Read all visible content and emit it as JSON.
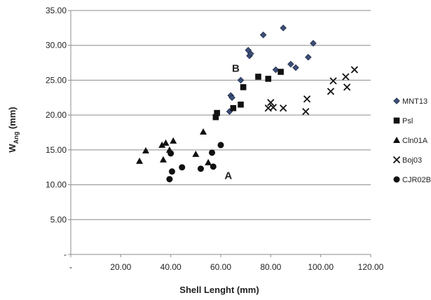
{
  "chart_data": {
    "type": "scatter",
    "title": "",
    "xlabel": "Shell Lenght (mm)",
    "ylabel_main": "W",
    "ylabel_sub": "Ang",
    "ylabel_unit": " (mm)",
    "xlim": [
      0,
      120
    ],
    "ylim": [
      0,
      35
    ],
    "x_ticks": [
      {
        "value": 0,
        "label": "-"
      },
      {
        "value": 20,
        "label": "20.00"
      },
      {
        "value": 40,
        "label": "40.00"
      },
      {
        "value": 60,
        "label": "60.00"
      },
      {
        "value": 80,
        "label": "80.00"
      },
      {
        "value": 100,
        "label": "100.00"
      },
      {
        "value": 120,
        "label": "120.00"
      }
    ],
    "y_ticks": [
      {
        "value": 0,
        "label": "-"
      },
      {
        "value": 5,
        "label": "5.00"
      },
      {
        "value": 10,
        "label": "10.00"
      },
      {
        "value": 15,
        "label": "15.00"
      },
      {
        "value": 20,
        "label": "20.00"
      },
      {
        "value": 25,
        "label": "25.00"
      },
      {
        "value": 30,
        "label": "30.00"
      },
      {
        "value": 35,
        "label": "35.00"
      }
    ],
    "grid": "horizontal",
    "legend_position": "right",
    "annotations": [
      {
        "text": "B",
        "x": 64.5,
        "y": 26.2
      },
      {
        "text": "A",
        "x": 61.5,
        "y": 10.8
      }
    ],
    "series": [
      {
        "name": "MNT13",
        "marker": "diamond",
        "color": "#2f3e5f",
        "points": [
          [
            63.5,
            20.5
          ],
          [
            64,
            22.8
          ],
          [
            64.5,
            22.5
          ],
          [
            68,
            25
          ],
          [
            71,
            29.3
          ],
          [
            71.5,
            28.5
          ],
          [
            72,
            28.8
          ],
          [
            77,
            31.5
          ],
          [
            82,
            26.5
          ],
          [
            85,
            32.5
          ],
          [
            88,
            27.3
          ],
          [
            90,
            26.8
          ],
          [
            95,
            28.3
          ],
          [
            97,
            30.3
          ]
        ]
      },
      {
        "name": "Psl",
        "marker": "square",
        "color": "#111111",
        "points": [
          [
            58,
            19.7
          ],
          [
            58.5,
            20.3
          ],
          [
            65,
            21
          ],
          [
            68,
            21.5
          ],
          [
            69,
            24
          ],
          [
            75,
            25.5
          ],
          [
            79,
            25.2
          ],
          [
            84,
            26.2
          ]
        ]
      },
      {
        "name": "Cln01A",
        "marker": "triangle",
        "color": "#111111",
        "points": [
          [
            27.5,
            13.4
          ],
          [
            30,
            14.9
          ],
          [
            36.5,
            15.7
          ],
          [
            37,
            13.6
          ],
          [
            38,
            16
          ],
          [
            39.5,
            15
          ],
          [
            41,
            16.3
          ],
          [
            50,
            14.4
          ],
          [
            53,
            17.6
          ],
          [
            55,
            13.2
          ]
        ]
      },
      {
        "name": "Boj03",
        "marker": "x",
        "color": "#111111",
        "points": [
          [
            79,
            21
          ],
          [
            80,
            21.8
          ],
          [
            81,
            21.1
          ],
          [
            85,
            21
          ],
          [
            94,
            20.5
          ],
          [
            94.5,
            22.3
          ],
          [
            104,
            23.4
          ],
          [
            105,
            24.9
          ],
          [
            110,
            25.5
          ],
          [
            110.5,
            24
          ],
          [
            113.5,
            26.5
          ]
        ]
      },
      {
        "name": "CJR02B",
        "marker": "circle",
        "color": "#111111",
        "points": [
          [
            39.5,
            10.8
          ],
          [
            40.5,
            11.9
          ],
          [
            40,
            14.5
          ],
          [
            44.5,
            12.5
          ],
          [
            52,
            12.3
          ],
          [
            56.5,
            14.6
          ],
          [
            57,
            12.6
          ],
          [
            60,
            15.7
          ]
        ]
      }
    ]
  }
}
